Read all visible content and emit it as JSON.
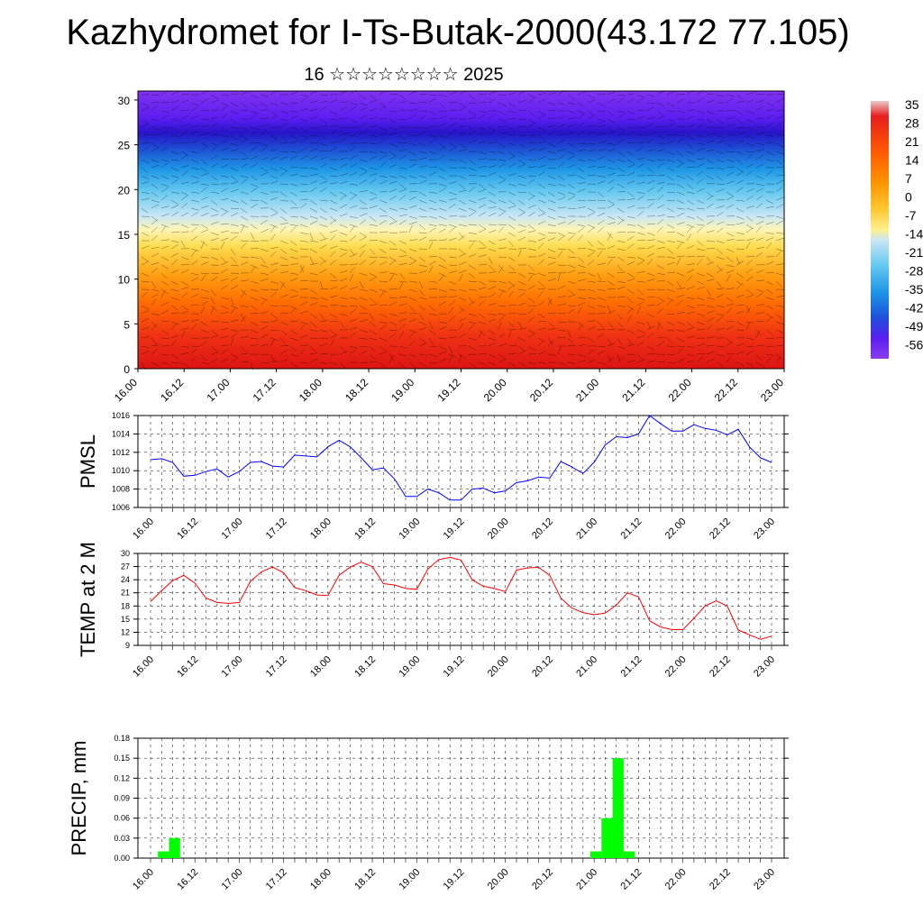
{
  "title": "Kazhydromet for I-Ts-Butak-2000(43.172 77.105)",
  "subtitle": "16 ☆☆☆☆☆☆☆☆ 2025",
  "chart_data": [
    {
      "type": "heatmap",
      "description_kind": "height-time cross section of temperature with wind barbs",
      "x_tick_labels": [
        "16.00",
        "16.12",
        "17.00",
        "17.12",
        "18.00",
        "18.12",
        "19.00",
        "19.12",
        "20.00",
        "20.12",
        "21.00",
        "21.12",
        "22.00",
        "22.12",
        "23.00"
      ],
      "y_tick_labels": [
        "0",
        "5",
        "10",
        "15",
        "20",
        "25",
        "30"
      ],
      "ylim": [
        0,
        31
      ],
      "colorbar_labels": [
        "35",
        "28",
        "21",
        "14",
        "7",
        "0",
        "-7",
        "-14",
        "-21",
        "-28",
        "-35",
        "-42",
        "-49",
        "-56"
      ],
      "colorbar_colors": [
        "#c8c8c8",
        "#e61e1e",
        "#ff5a00",
        "#ff9600",
        "#ffc832",
        "#fff08c",
        "#c8e6f5",
        "#64c8f0",
        "#1e96e6",
        "#1e50dc",
        "#5a1ef0",
        "#8c3cf0"
      ]
    },
    {
      "type": "line",
      "ylabel": "PMSL",
      "ylim": [
        1006,
        1016
      ],
      "y_tick_labels": [
        "1006",
        "1008",
        "1010",
        "1012",
        "1014",
        "1016"
      ],
      "x_tick_labels": [
        "16.00",
        "16.12",
        "17.00",
        "17.12",
        "18.00",
        "18.12",
        "19.00",
        "19.12",
        "20.00",
        "20.12",
        "21.00",
        "21.12",
        "22.00",
        "22.12",
        "23.00"
      ],
      "series": [
        {
          "color": "#0000ff",
          "values": [
            1011.2,
            1011.3,
            1010.9,
            1009.4,
            1009.5,
            1009.9,
            1010.2,
            1009.3,
            1009.9,
            1010.9,
            1011.0,
            1010.5,
            1010.4,
            1011.7,
            1011.6,
            1011.5,
            1012.6,
            1013.3,
            1012.6,
            1011.4,
            1010.1,
            1010.3,
            1009.1,
            1007.2,
            1007.2,
            1008.0,
            1007.6,
            1006.8,
            1006.8,
            1008.0,
            1008.1,
            1007.6,
            1007.8,
            1008.7,
            1008.9,
            1009.3,
            1009.2,
            1011.0,
            1010.4,
            1009.7,
            1010.9,
            1012.8,
            1013.7,
            1013.6,
            1014.0,
            1016.0,
            1015.1,
            1014.3,
            1014.3,
            1015.0,
            1014.6,
            1014.4,
            1013.9,
            1014.5,
            1012.6,
            1011.4,
            1010.9
          ]
        }
      ]
    },
    {
      "type": "line",
      "ylabel": "TEMP at 2 M",
      "ylim": [
        9,
        30
      ],
      "y_tick_labels": [
        "9",
        "12",
        "15",
        "18",
        "21",
        "24",
        "27",
        "30"
      ],
      "x_tick_labels": [
        "16.00",
        "16.12",
        "17.00",
        "17.12",
        "18.00",
        "18.12",
        "19.00",
        "19.12",
        "20.00",
        "20.12",
        "21.00",
        "21.12",
        "22.00",
        "22.12",
        "23.00"
      ],
      "series": [
        {
          "color": "#ff0000",
          "values": [
            19.0,
            21.5,
            23.8,
            25.0,
            23.2,
            19.8,
            18.8,
            18.6,
            18.8,
            23.6,
            25.8,
            26.9,
            25.6,
            22.2,
            21.5,
            20.5,
            20.4,
            25.0,
            26.9,
            28.0,
            27.0,
            23.1,
            22.8,
            22.0,
            21.8,
            26.4,
            28.6,
            29.1,
            28.5,
            24.0,
            22.5,
            22.0,
            21.3,
            26.2,
            26.7,
            26.8,
            25.0,
            19.8,
            17.5,
            16.5,
            16.0,
            16.4,
            18.2,
            21.0,
            20.1,
            14.6,
            13.2,
            12.6,
            12.6,
            15.2,
            18.0,
            19.2,
            18.0,
            12.5,
            11.4,
            10.4,
            11.1
          ]
        }
      ]
    },
    {
      "type": "bar",
      "ylabel": "PRECIP, mm",
      "ylim": [
        0,
        0.18
      ],
      "y_tick_labels": [
        "0.00",
        "0.03",
        "0.06",
        "0.09",
        "0.12",
        "0.15",
        "0.18"
      ],
      "x_tick_labels": [
        "16.00",
        "16.12",
        "17.00",
        "17.12",
        "18.00",
        "18.12",
        "19.00",
        "19.12",
        "20.00",
        "20.12",
        "21.00",
        "21.12",
        "22.00",
        "22.12",
        "23.00"
      ],
      "bar_color": "#00ff00",
      "bars": [
        {
          "step": 1,
          "value": 0.01
        },
        {
          "step": 2,
          "value": 0.03
        },
        {
          "step": 40,
          "value": 0.01
        },
        {
          "step": 41,
          "value": 0.06
        },
        {
          "step": 42,
          "value": 0.15
        },
        {
          "step": 43,
          "value": 0.01
        }
      ]
    }
  ]
}
